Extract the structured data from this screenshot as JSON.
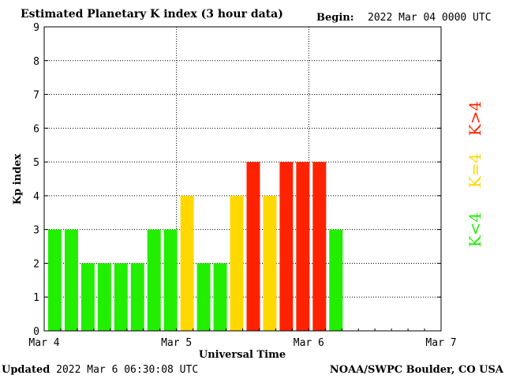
{
  "header": {
    "title": "Estimated Planetary K index (3 hour data)",
    "begin_label": "Begin:",
    "begin_value": "2022 Mar 04 0000 UTC"
  },
  "footer": {
    "updated_label": "Updated",
    "updated_value": "2022 Mar  6 06:30:08 UTC",
    "credit": "NOAA/SWPC Boulder, CO USA"
  },
  "colors": {
    "low": "#22ee00",
    "medium": "#ffd800",
    "high": "#ff2200"
  },
  "legend": {
    "low": "K<4",
    "medium": "K=4",
    "high": "K>4"
  },
  "chart_data": {
    "type": "bar",
    "title": "Estimated Planetary K index (3 hour data)",
    "xlabel": "Universal Time",
    "ylabel": "Kp index",
    "ylim": [
      0,
      9
    ],
    "yticks": [
      0,
      1,
      2,
      3,
      4,
      5,
      6,
      7,
      8,
      9
    ],
    "xlim": [
      "Mar 4",
      "Mar 7"
    ],
    "xticks": [
      "Mar 4",
      "Mar 5",
      "Mar 6",
      "Mar 7"
    ],
    "interval_hours": 3,
    "grid": true,
    "values": [
      3,
      3,
      2,
      2,
      2,
      2,
      3,
      3,
      4,
      2,
      2,
      4,
      5,
      4,
      5,
      5,
      5,
      3
    ]
  }
}
